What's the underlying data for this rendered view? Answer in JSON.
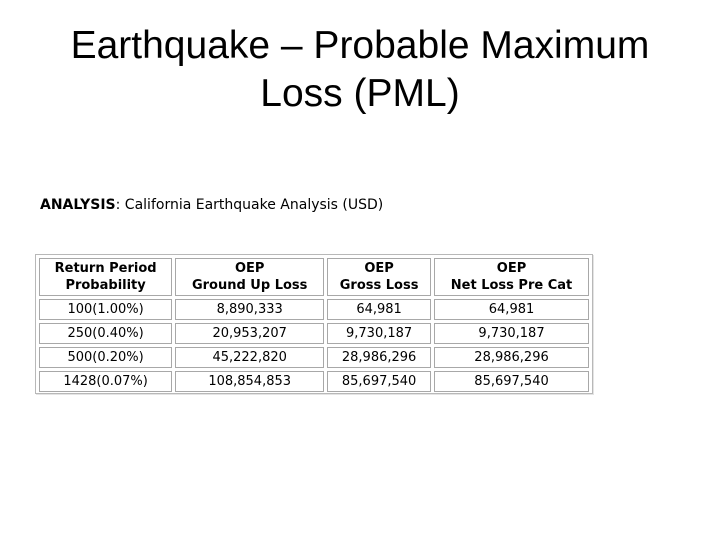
{
  "slide": {
    "title_line1": "Earthquake – Probable Maximum",
    "title_line2": "Loss (PML)"
  },
  "analysis": {
    "label": "ANALYSIS",
    "separator": ":",
    "description": " California Earthquake Analysis (USD)"
  },
  "table": {
    "headers": [
      {
        "line1": "Return Period",
        "line2": "Probability"
      },
      {
        "line1": "OEP",
        "line2": "Ground Up Loss"
      },
      {
        "line1": "OEP",
        "line2": "Gross Loss"
      },
      {
        "line1": "OEP",
        "line2": "Net Loss Pre Cat"
      }
    ],
    "rows": [
      [
        "100(1.00%)",
        "8,890,333",
        "64,981",
        "64,981"
      ],
      [
        "250(0.40%)",
        "20,953,207",
        "9,730,187",
        "9,730,187"
      ],
      [
        "500(0.20%)",
        "45,222,820",
        "28,986,296",
        "28,986,296"
      ],
      [
        "1428(0.07%)",
        "108,854,853",
        "85,697,540",
        "85,697,540"
      ]
    ]
  }
}
